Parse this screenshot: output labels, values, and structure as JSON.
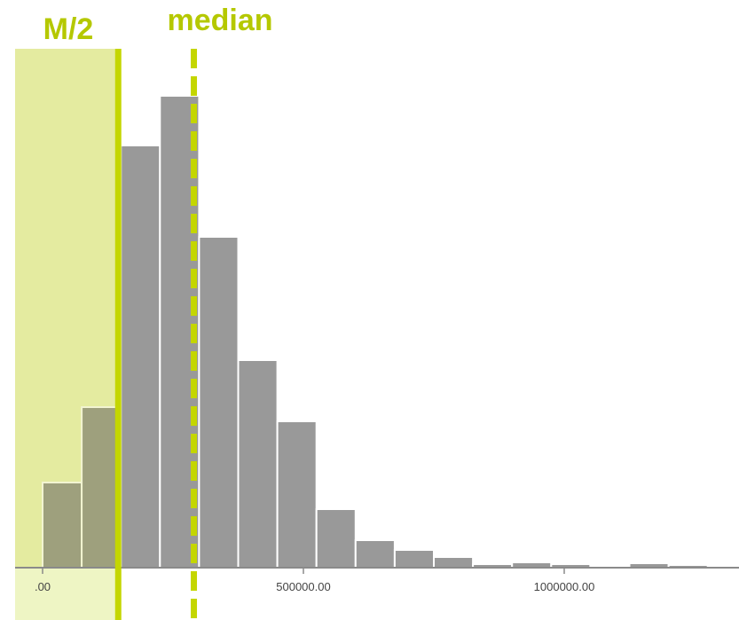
{
  "colors": {
    "bar_fill": "#999999",
    "bar_stroke": "#ffffff",
    "shade_fill": "#eef5c4",
    "marker": "#c4d600",
    "axis": "#8a8a8a",
    "marker_text": "#b5c800"
  },
  "chart_data": {
    "type": "bar",
    "title": "",
    "xlabel": "",
    "ylabel": "",
    "bin_width": 75000,
    "bin_starts": [
      0,
      75000,
      150000,
      225000,
      300000,
      375000,
      450000,
      525000,
      600000,
      675000,
      750000,
      825000,
      900000,
      975000,
      1050000,
      1125000,
      1200000,
      1275000
    ],
    "values": [
      96,
      181,
      476,
      532,
      373,
      234,
      165,
      66,
      31,
      20,
      12,
      4,
      6,
      4,
      2,
      5,
      3,
      0
    ],
    "xlim": [
      -10000,
      1340000
    ],
    "ylim": [
      0,
      560
    ],
    "x_ticks": [
      0,
      500000,
      1000000
    ],
    "x_tick_labels": [
      ".00",
      "500000.00",
      "1000000.00"
    ],
    "y_ticks": [],
    "grid": false,
    "legend": "none",
    "markers": {
      "half_median": {
        "label": "M/2",
        "value": 145000,
        "style": "solid",
        "shade_below": true
      },
      "median": {
        "label": "median",
        "value": 290000,
        "style": "dashed"
      }
    }
  }
}
